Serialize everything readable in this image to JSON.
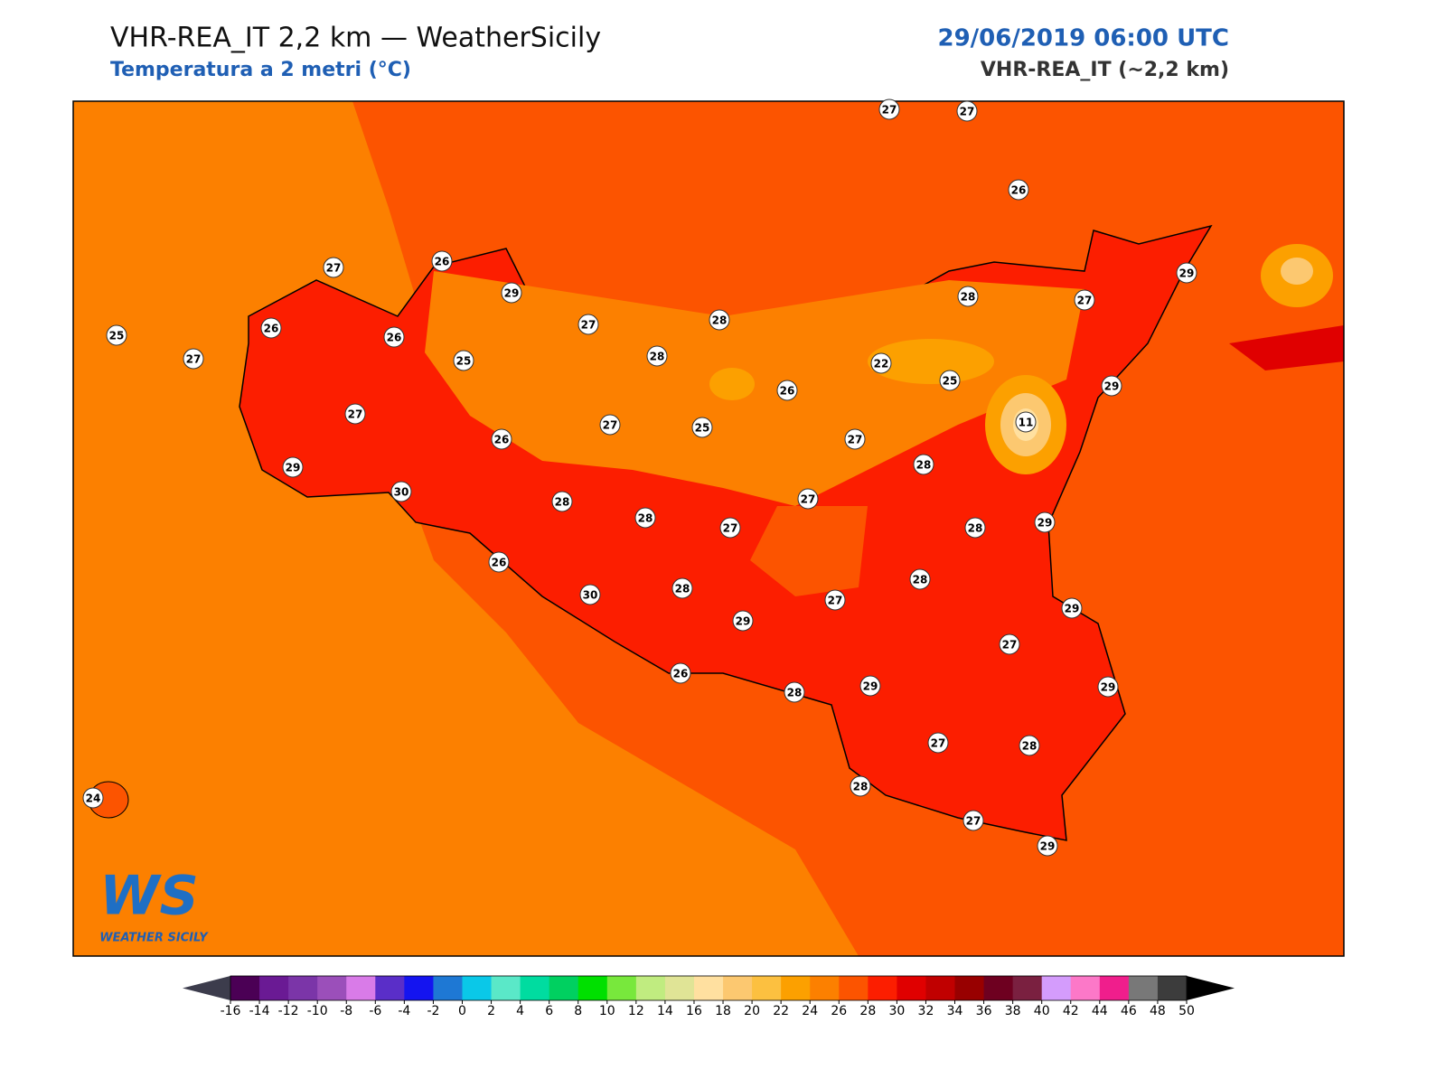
{
  "header": {
    "title": "VHR-REA_IT 2,2 km — WeatherSicily",
    "subtitle": "Temperatura a 2 metri (°C)",
    "datetime": "29/06/2019 06:00 UTC",
    "model": "VHR-REA_IT (~2,2 km)"
  },
  "logo": {
    "mark": "WS",
    "text": "WEATHER SICILY"
  },
  "stations": [
    27,
    27,
    26,
    27,
    26,
    29,
    25,
    26,
    27,
    26,
    25,
    27,
    28,
    28,
    28,
    27,
    29,
    22,
    25,
    26,
    29,
    11,
    27,
    26,
    27,
    25,
    27,
    29,
    30,
    28,
    28,
    27,
    28,
    27,
    28,
    29,
    26,
    30,
    28,
    28,
    27,
    29,
    29,
    27,
    26,
    28,
    29,
    29,
    27,
    28,
    28,
    27,
    29,
    24
  ],
  "colorbar": {
    "ticks": [
      -16,
      -14,
      -12,
      -10,
      -8,
      -6,
      -4,
      -2,
      0,
      2,
      4,
      6,
      8,
      10,
      12,
      14,
      16,
      18,
      20,
      22,
      24,
      26,
      28,
      30,
      32,
      34,
      36,
      38,
      40,
      42,
      44,
      46,
      48,
      50
    ],
    "colors": [
      "#4b0055",
      "#6a1a94",
      "#7b35a8",
      "#9b4fba",
      "#d97be8",
      "#5a2ec8",
      "#1414f0",
      "#1e78d4",
      "#0ac8e8",
      "#5ae8c8",
      "#00dca0",
      "#00d060",
      "#00e000",
      "#78e83c",
      "#c0ec80",
      "#e0e496",
      "#ffe0a0",
      "#fcc870",
      "#fcc040",
      "#fca000",
      "#fc8000",
      "#fc5400",
      "#fc1e00",
      "#e00000",
      "#c00000",
      "#980000",
      "#6e0020",
      "#7a2040",
      "#d49cfc",
      "#fc78c8",
      "#f01e8c",
      "#787878",
      "#3c3c3c"
    ],
    "under": "#3c3c4c",
    "over": "#000000"
  }
}
